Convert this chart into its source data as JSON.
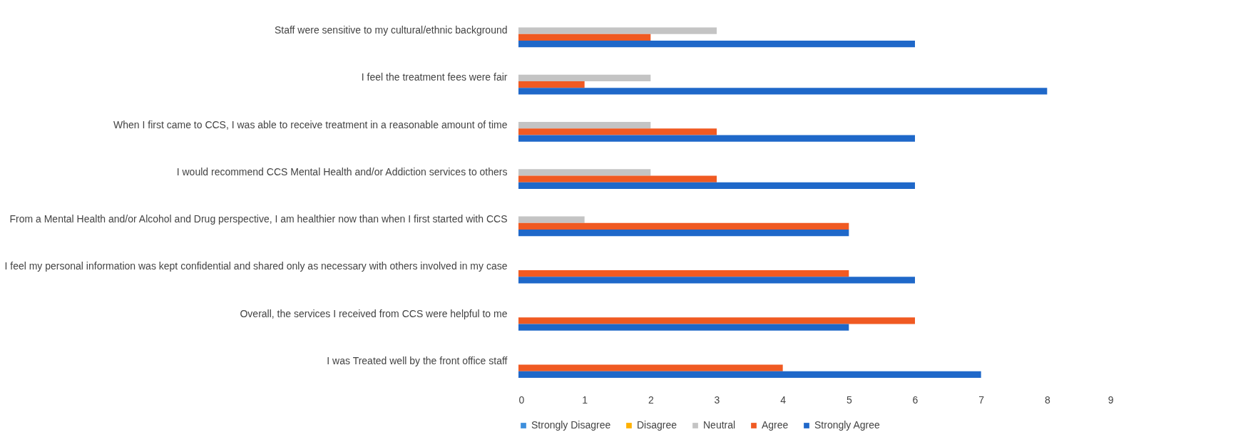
{
  "chart_data": {
    "type": "bar",
    "orientation": "horizontal",
    "categories": [
      "Staff were sensitive to my cultural/ethnic background",
      "I feel the treatment fees were fair",
      "When I first came to CCS, I was able to receive treatment in a reasonable amount of time",
      "I would recommend CCS Mental Health and/or Addiction services to others",
      "From a Mental Health and/or Alcohol and Drug perspective, I am healthier now than when I first started with CCS",
      "I feel my personal information was kept confidential and shared only as necessary with others involved in my case",
      "Overall, the services I received from CCS were helpful to me",
      "I was Treated well by the front office staff"
    ],
    "series": [
      {
        "name": "Strongly Disagree",
        "color": "#3d8fdc",
        "values": [
          null,
          null,
          null,
          null,
          null,
          null,
          null,
          null
        ]
      },
      {
        "name": "Disagree",
        "color": "#ffb100",
        "values": [
          null,
          null,
          null,
          null,
          null,
          null,
          null,
          null
        ]
      },
      {
        "name": "Neutral",
        "color": "#c4c4c4",
        "values": [
          3,
          2,
          2,
          2,
          1,
          null,
          null,
          null
        ]
      },
      {
        "name": "Agree",
        "color": "#f05a22",
        "values": [
          2,
          1,
          3,
          3,
          5,
          5,
          6,
          4
        ]
      },
      {
        "name": "Strongly Agree",
        "color": "#1f68c9",
        "values": [
          6,
          8,
          6,
          6,
          5,
          6,
          5,
          7
        ]
      }
    ],
    "xlim": [
      0,
      9
    ],
    "xticks": [
      0,
      1,
      2,
      3,
      4,
      5,
      6,
      7,
      8,
      9
    ],
    "grid": false,
    "legend": "bottom"
  }
}
